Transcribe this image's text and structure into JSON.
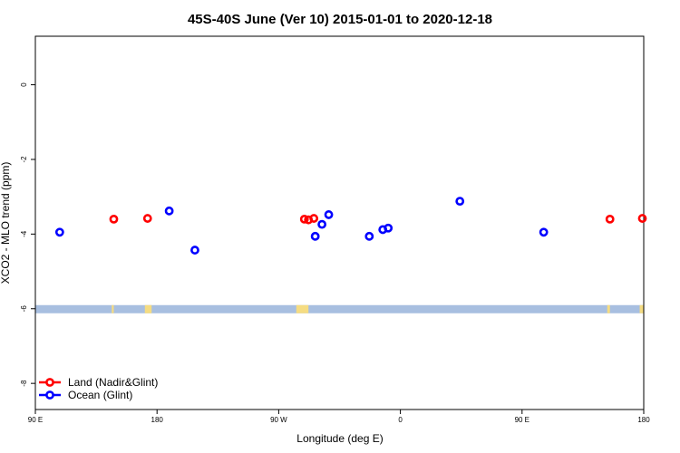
{
  "chart_data": {
    "type": "scatter",
    "title": "45S-40S June (Ver 10)   2015-01-01 to 2020-12-18",
    "xlabel": "Longitude (deg E)",
    "ylabel": "XCO2 - MLO trend (ppm)",
    "xlim": [
      90,
      540
    ],
    "ylim": [
      -8.7,
      1.3
    ],
    "x_ticks": [
      {
        "value": 90,
        "label": "90 E"
      },
      {
        "value": 180,
        "label": "180"
      },
      {
        "value": 270,
        "label": "90 W"
      },
      {
        "value": 360,
        "label": "0"
      },
      {
        "value": 450,
        "label": "90 E"
      },
      {
        "value": 540,
        "label": "180"
      }
    ],
    "y_ticks": [
      {
        "value": 0,
        "label": "0"
      },
      {
        "value": -2,
        "label": "-2"
      },
      {
        "value": -4,
        "label": "-4"
      },
      {
        "value": -6,
        "label": "-6"
      },
      {
        "value": -8,
        "label": "-8"
      }
    ],
    "grid": false,
    "legend_position": "bottom-left",
    "land_strip": {
      "y": -6,
      "ocean_color": "#a8bfe0",
      "land_color": "#f5dc82",
      "land_segments": [
        [
          146.5,
          148
        ],
        [
          171,
          176
        ],
        [
          283,
          292
        ],
        [
          513,
          515
        ],
        [
          537,
          540
        ]
      ]
    },
    "series": [
      {
        "name": "Land (Nadir&Glint)",
        "color": "#ff0000",
        "x": [
          148,
          173,
          289,
          292,
          296,
          515,
          539
        ],
        "y": [
          -3.6,
          -3.58,
          -3.6,
          -3.62,
          -3.58,
          -3.6,
          -3.58
        ]
      },
      {
        "name": "Ocean (Glint)",
        "color": "#0000ff",
        "x": [
          108,
          189,
          208,
          297,
          302,
          307,
          337,
          347,
          351,
          404,
          466
        ],
        "y": [
          -3.95,
          -3.38,
          -4.43,
          -4.06,
          -3.74,
          -3.48,
          -4.06,
          -3.88,
          -3.84,
          -3.12,
          -3.95
        ]
      }
    ]
  }
}
